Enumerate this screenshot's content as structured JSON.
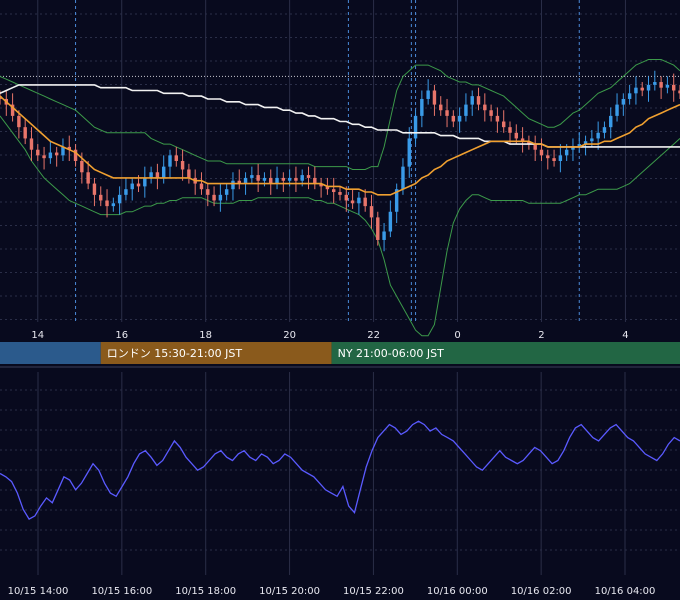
{
  "sessions": [
    {
      "label": "",
      "color": "#2b5a8c",
      "from": 10.5,
      "to": 15.5
    },
    {
      "label": "ロンドン 15:30-21:00 JST",
      "color": "#8a5a1c",
      "from": 15.5,
      "to": 21.0
    },
    {
      "label": "NY 21:00-06:00 JST",
      "color": "#226644",
      "from": 21.0,
      "to": 30.0
    }
  ],
  "chart_data": [
    {
      "type": "candlestick",
      "title": "",
      "x_ticks": [
        "14",
        "16",
        "18",
        "20",
        "22",
        "0",
        "2",
        "4"
      ],
      "x_tick_hours": [
        14,
        16,
        18,
        20,
        22,
        24,
        26,
        28
      ],
      "x_range_hours": [
        13.1,
        29.3
      ],
      "y_range": [
        0,
        100
      ],
      "grid": true,
      "vertical_markers_hours": [
        14.9,
        21.4,
        22.9,
        23.0,
        26.9
      ],
      "reference_line_y": 80,
      "series": [
        {
          "role": "candles",
          "up_color": "#3a9be8",
          "down_color": "#e8756a"
        },
        {
          "role": "moving-average-short",
          "color": "#f0a030"
        },
        {
          "role": "moving-average-long",
          "color": "#f2f2f2"
        },
        {
          "role": "bollinger-bands",
          "color": "#3c9a4a"
        }
      ],
      "close": [
        72,
        70,
        66,
        62,
        58,
        54,
        52,
        51,
        53,
        52,
        55,
        54,
        50,
        46,
        42,
        38,
        36,
        34,
        35,
        38,
        40,
        42,
        41,
        44,
        46,
        44,
        48,
        52,
        50,
        47,
        44,
        42,
        40,
        38,
        36,
        38,
        40,
        43,
        42,
        44,
        45,
        43,
        44,
        42,
        44,
        43,
        44,
        43,
        45,
        44,
        42,
        41,
        40,
        39,
        38,
        36,
        35,
        37,
        34,
        30,
        22,
        25,
        32,
        40,
        48,
        58,
        66,
        72,
        75,
        70,
        68,
        66,
        64,
        66,
        70,
        73,
        70,
        68,
        66,
        64,
        62,
        60,
        58,
        57,
        56,
        54,
        52,
        51,
        50,
        52,
        54,
        55,
        56,
        57,
        58,
        60,
        62,
        66,
        70,
        72,
        74,
        76,
        75,
        77,
        78,
        76,
        77,
        75,
        74
      ],
      "ma_short": [
        73,
        71,
        69,
        67,
        65,
        63,
        61,
        59,
        57,
        56,
        55,
        54,
        53,
        51,
        49,
        47,
        46,
        45,
        44,
        44,
        44,
        44,
        44,
        44,
        44,
        44,
        44,
        44,
        44,
        44,
        44,
        43,
        43,
        42,
        42,
        42,
        42,
        42,
        42,
        42,
        42,
        42,
        42,
        42,
        42,
        42,
        42,
        42,
        42,
        42,
        42,
        42,
        41,
        41,
        41,
        40,
        40,
        40,
        39,
        39,
        38,
        38,
        38,
        39,
        40,
        41,
        42,
        44,
        45,
        47,
        48,
        50,
        51,
        52,
        53,
        54,
        55,
        56,
        57,
        57,
        57,
        57,
        57,
        57,
        57,
        56,
        56,
        55,
        55,
        55,
        55,
        55,
        55,
        56,
        56,
        56,
        57,
        57,
        58,
        59,
        60,
        62,
        63,
        65,
        66,
        67,
        68,
        69,
        70
      ],
      "ma_long": [
        74,
        75,
        76,
        77,
        77,
        77,
        77,
        77,
        77,
        77,
        77,
        77,
        77,
        77,
        77,
        77,
        76,
        76,
        76,
        76,
        76,
        75,
        75,
        75,
        75,
        75,
        74,
        74,
        74,
        74,
        73,
        73,
        73,
        72,
        72,
        72,
        71,
        71,
        71,
        70,
        70,
        70,
        69,
        69,
        69,
        68,
        68,
        67,
        67,
        66,
        66,
        65,
        65,
        65,
        64,
        64,
        63,
        63,
        62,
        62,
        61,
        61,
        61,
        61,
        60,
        60,
        60,
        60,
        60,
        60,
        59,
        59,
        59,
        58,
        58,
        58,
        58,
        57,
        57,
        57,
        57,
        56,
        56,
        56,
        56,
        56,
        56,
        55,
        55,
        55,
        55,
        55,
        55,
        55,
        55,
        55,
        55,
        55,
        55,
        55,
        55,
        55,
        55,
        55,
        55,
        55,
        55,
        55,
        55
      ],
      "bb_upper": [
        80,
        79,
        78,
        77,
        76,
        75,
        74,
        73,
        72,
        71,
        70,
        69,
        68,
        66,
        64,
        62,
        61,
        60,
        60,
        60,
        60,
        60,
        60,
        60,
        58,
        57,
        56,
        56,
        55,
        54,
        53,
        52,
        51,
        50,
        50,
        50,
        49,
        49,
        49,
        49,
        49,
        49,
        49,
        49,
        49,
        49,
        49,
        49,
        49,
        49,
        48,
        48,
        48,
        48,
        48,
        48,
        47,
        47,
        47,
        48,
        48,
        55,
        65,
        75,
        80,
        82,
        84,
        84,
        84,
        83,
        82,
        80,
        79,
        78,
        78,
        77,
        77,
        76,
        75,
        74,
        73,
        71,
        69,
        67,
        65,
        64,
        63,
        62,
        62,
        63,
        65,
        67,
        68,
        70,
        72,
        74,
        75,
        76,
        78,
        80,
        82,
        84,
        85,
        86,
        86,
        86,
        85,
        84,
        82
      ],
      "bb_lower": [
        66,
        63,
        60,
        57,
        54,
        50,
        47,
        44,
        42,
        40,
        38,
        36,
        35,
        34,
        33,
        32,
        31,
        31,
        31,
        31,
        32,
        32,
        33,
        34,
        34,
        35,
        35,
        36,
        36,
        37,
        37,
        37,
        37,
        36,
        35,
        35,
        35,
        35,
        36,
        36,
        36,
        37,
        37,
        37,
        37,
        37,
        37,
        37,
        37,
        37,
        36,
        36,
        35,
        35,
        34,
        33,
        32,
        31,
        29,
        26,
        22,
        15,
        6,
        2,
        -2,
        -6,
        -10,
        -12,
        -12,
        -8,
        5,
        18,
        28,
        33,
        36,
        38,
        38,
        37,
        36,
        36,
        36,
        36,
        36,
        36,
        35,
        35,
        35,
        35,
        35,
        35,
        36,
        37,
        38,
        38,
        39,
        40,
        40,
        40,
        40,
        41,
        42,
        44,
        46,
        48,
        50,
        52,
        54,
        56,
        58
      ]
    },
    {
      "type": "line",
      "title": "",
      "x_ticks": [
        "10/15 14:00",
        "10/15 16:00",
        "10/15 18:00",
        "10/15 20:00",
        "10/15 22:00",
        "10/16 00:00",
        "10/16 02:00",
        "10/16 04:00"
      ],
      "y_range": [
        0,
        100
      ],
      "grid": true,
      "series": [
        {
          "color": "#5a5aff",
          "values": [
            50,
            48,
            45,
            38,
            28,
            22,
            24,
            30,
            35,
            32,
            40,
            48,
            46,
            40,
            44,
            50,
            56,
            52,
            44,
            38,
            36,
            42,
            48,
            56,
            62,
            64,
            60,
            55,
            58,
            64,
            70,
            66,
            60,
            56,
            52,
            54,
            58,
            62,
            64,
            60,
            58,
            62,
            64,
            60,
            58,
            62,
            60,
            56,
            58,
            62,
            60,
            56,
            52,
            50,
            48,
            44,
            40,
            38,
            36,
            42,
            30,
            26,
            40,
            54,
            64,
            72,
            76,
            80,
            78,
            74,
            76,
            80,
            82,
            80,
            76,
            78,
            74,
            72,
            70,
            66,
            62,
            58,
            54,
            52,
            56,
            60,
            64,
            60,
            58,
            56,
            58,
            62,
            66,
            64,
            60,
            56,
            58,
            64,
            72,
            78,
            80,
            76,
            72,
            70,
            74,
            78,
            80,
            76,
            72,
            70,
            66,
            62,
            60,
            58,
            62,
            68,
            72,
            70
          ]
        }
      ]
    }
  ]
}
